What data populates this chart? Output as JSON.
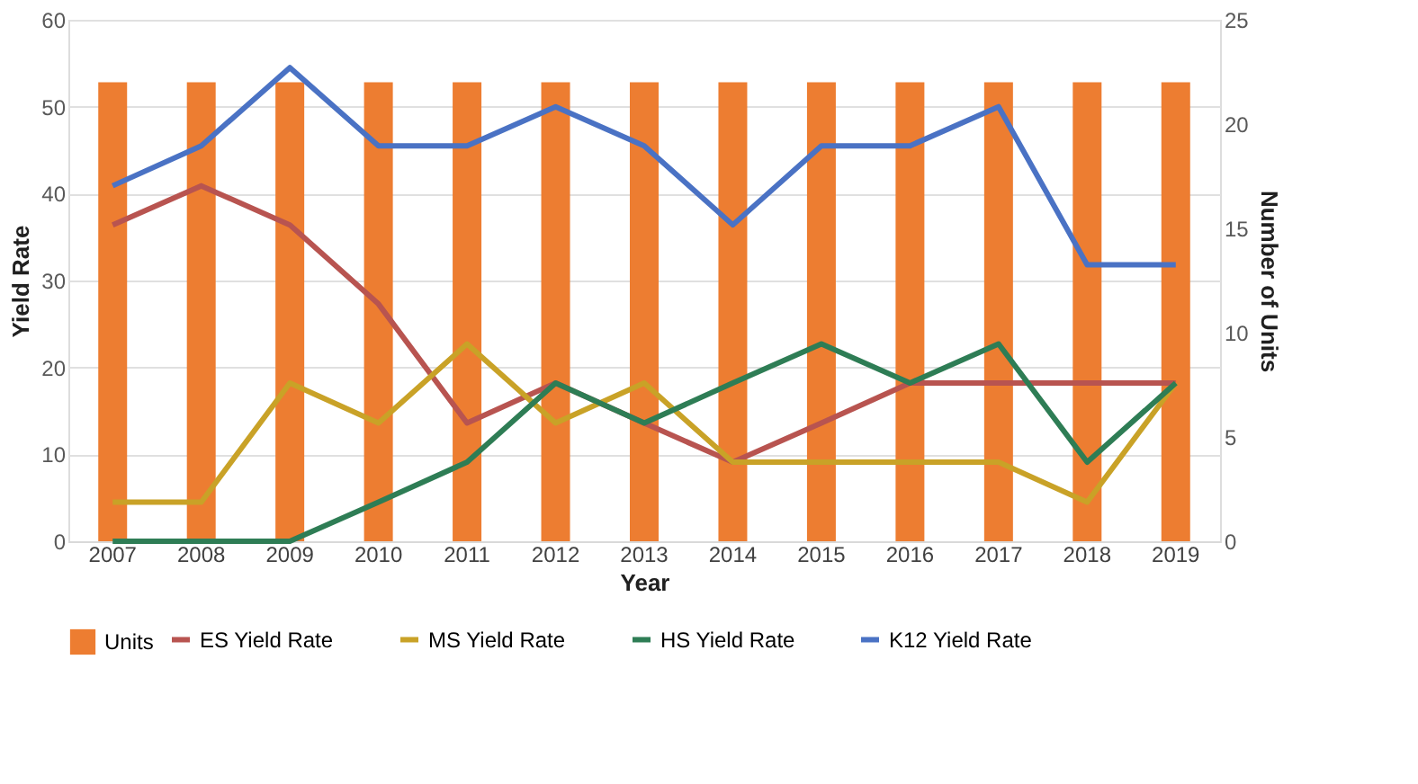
{
  "chart_data": {
    "type": "line",
    "xlabel": "Year",
    "ylabel": "Yield Rate",
    "y2label": "Number of Units",
    "categories": [
      "2007",
      "2008",
      "2009",
      "2010",
      "2011",
      "2012",
      "2013",
      "2014",
      "2015",
      "2016",
      "2017",
      "2018",
      "2019"
    ],
    "series": [
      {
        "name": "Units",
        "type": "bar",
        "axis": "y2",
        "color": "#ed7d31",
        "values": [
          22,
          22,
          22,
          22,
          22,
          22,
          22,
          22,
          22,
          22,
          22,
          22,
          22
        ]
      },
      {
        "name": "ES Yield Rate",
        "color": "#b85450",
        "values": [
          36.4,
          40.9,
          36.4,
          27.3,
          13.6,
          18.2,
          13.6,
          9.1,
          13.6,
          18.2,
          18.2,
          18.2,
          18.2
        ]
      },
      {
        "name": "MS Yield Rate",
        "color": "#c9a227",
        "values": [
          4.5,
          4.5,
          18.2,
          13.6,
          22.7,
          13.6,
          18.2,
          9.1,
          9.1,
          9.1,
          9.1,
          4.5,
          18.2
        ]
      },
      {
        "name": "HS Yield Rate",
        "color": "#2e7d55",
        "values": [
          0,
          0,
          0,
          4.5,
          9.1,
          18.2,
          13.6,
          18.2,
          22.7,
          18.2,
          22.7,
          9.1,
          18.2
        ]
      },
      {
        "name": "K12 Yield Rate",
        "color": "#4a72c4",
        "values": [
          40.9,
          45.5,
          54.5,
          45.5,
          45.5,
          50,
          45.5,
          36.4,
          45.5,
          45.5,
          50,
          31.8,
          31.8
        ]
      }
    ],
    "ylim": [
      0,
      60
    ],
    "yticks": [
      0,
      10,
      20,
      30,
      40,
      50,
      60
    ],
    "y2lim": [
      0,
      25
    ],
    "y2ticks": [
      0,
      5,
      10,
      15,
      20,
      25
    ],
    "grid": "y",
    "legend": "bottom",
    "marker": "none",
    "line_style": "solid"
  }
}
